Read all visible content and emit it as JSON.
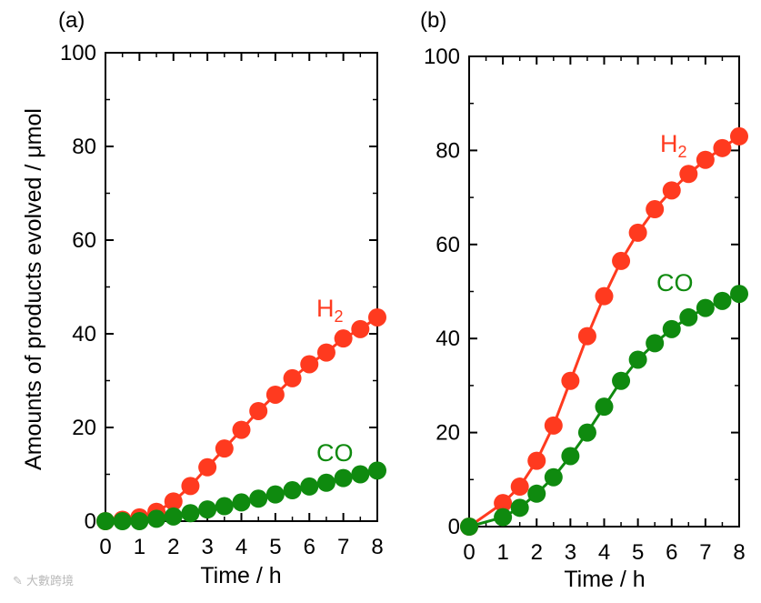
{
  "colors": {
    "h2": "#ff3a1f",
    "co": "#0f8a0f",
    "axis": "#000000"
  },
  "chart_data": [
    {
      "panel_label": "(a)",
      "type": "line",
      "xlabel": "Time / h",
      "ylabel": "Amounts of products evolved / μmol",
      "xlim": [
        0,
        8
      ],
      "ylim": [
        0,
        100
      ],
      "xticks": [
        "0",
        "1",
        "2",
        "3",
        "4",
        "5",
        "6",
        "7",
        "8"
      ],
      "yticks": [
        "0",
        "20",
        "40",
        "60",
        "80",
        "100"
      ],
      "series": [
        {
          "name": "H2",
          "label_main": "H",
          "label_sub": "2",
          "color_key": "h2",
          "x": [
            0,
            0.5,
            1,
            1.5,
            2,
            2.5,
            3,
            3.5,
            4,
            4.5,
            5,
            5.5,
            6,
            6.5,
            7,
            7.5,
            8
          ],
          "y": [
            0,
            0.3,
            0.8,
            2,
            4.2,
            7.5,
            11.5,
            15.5,
            19.5,
            23.5,
            27,
            30.5,
            33.5,
            36,
            39,
            41,
            43.5
          ]
        },
        {
          "name": "CO",
          "label_main": "CO",
          "label_sub": "",
          "color_key": "co",
          "x": [
            0,
            0.5,
            1,
            1.5,
            2,
            2.5,
            3,
            3.5,
            4,
            4.5,
            5,
            5.5,
            6,
            6.5,
            7,
            7.5,
            8
          ],
          "y": [
            0,
            0,
            0,
            0.5,
            1,
            1.7,
            2.5,
            3.2,
            4,
            4.8,
            5.7,
            6.6,
            7.4,
            8.2,
            9.2,
            10,
            10.8
          ]
        }
      ]
    },
    {
      "panel_label": "(b)",
      "type": "line",
      "xlabel": "Time / h",
      "ylabel": "",
      "xlim": [
        0,
        8
      ],
      "ylim": [
        0,
        100
      ],
      "xticks": [
        "0",
        "1",
        "2",
        "3",
        "4",
        "5",
        "6",
        "7",
        "8"
      ],
      "yticks": [
        "0",
        "20",
        "40",
        "60",
        "80",
        "100"
      ],
      "series": [
        {
          "name": "H2",
          "label_main": "H",
          "label_sub": "2",
          "color_key": "h2",
          "x": [
            0,
            1,
            1.5,
            2,
            2.5,
            3,
            3.5,
            4,
            4.5,
            5,
            5.5,
            6,
            6.5,
            7,
            7.5,
            8
          ],
          "y": [
            0,
            5,
            8.5,
            14,
            21.5,
            31,
            40.5,
            49,
            56.5,
            62.5,
            67.5,
            71.5,
            75,
            78,
            80.5,
            83
          ]
        },
        {
          "name": "CO",
          "label_main": "CO",
          "label_sub": "",
          "color_key": "co",
          "x": [
            0,
            1,
            1.5,
            2,
            2.5,
            3,
            3.5,
            4,
            4.5,
            5,
            5.5,
            6,
            6.5,
            7,
            7.5,
            8
          ],
          "y": [
            0,
            2,
            4,
            7,
            10.5,
            15,
            20,
            25.5,
            31,
            35.5,
            39,
            42,
            44.5,
            46.5,
            48,
            49.5
          ]
        }
      ]
    }
  ],
  "watermark": "大數跨境"
}
